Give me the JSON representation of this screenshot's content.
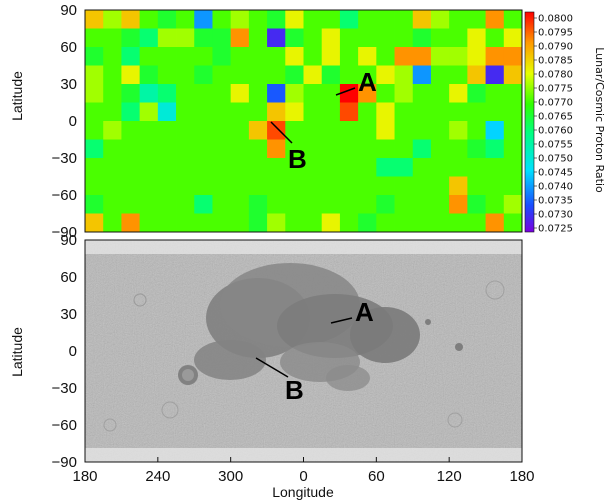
{
  "chart_data": [
    {
      "type": "heatmap",
      "panel": "top",
      "ylabel": "Latitude",
      "yticks": [
        "90",
        "60",
        "30",
        "0",
        "−30",
        "−60",
        "−90"
      ],
      "colorbar": {
        "label": "Lunar/Cosmic Proton Ratio",
        "ticks": [
          "0.0800",
          "0.0795",
          "0.0790",
          "0.0785",
          "0.0780",
          "0.0775",
          "0.0770",
          "0.0765",
          "0.0760",
          "0.0755",
          "0.0750",
          "0.0745",
          "0.0740",
          "0.0735",
          "0.0730",
          "0.0725"
        ],
        "range": [
          0.0725,
          0.08
        ],
        "palette": "rainbow (purple-blue-cyan-green-yellow-orange-red)"
      },
      "grid_rows": 12,
      "grid_cols": 24,
      "values": [
        [
          0.0785,
          0.0775,
          0.0785,
          0.077,
          0.0765,
          0.077,
          0.074,
          0.077,
          0.0775,
          0.077,
          0.0765,
          0.078,
          0.077,
          0.077,
          0.076,
          0.077,
          0.077,
          0.077,
          0.0785,
          0.0775,
          0.077,
          0.077,
          0.079,
          0.077
        ],
        [
          0.077,
          0.077,
          0.0765,
          0.076,
          0.0775,
          0.0775,
          0.0765,
          0.0765,
          0.079,
          0.077,
          0.073,
          0.0765,
          0.077,
          0.078,
          0.077,
          0.077,
          0.077,
          0.077,
          0.0765,
          0.077,
          0.077,
          0.078,
          0.077,
          0.078
        ],
        [
          0.0765,
          0.077,
          0.076,
          0.077,
          0.077,
          0.077,
          0.077,
          0.0765,
          0.077,
          0.077,
          0.077,
          0.078,
          0.077,
          0.078,
          0.077,
          0.078,
          0.077,
          0.079,
          0.079,
          0.0775,
          0.0775,
          0.078,
          0.079,
          0.079
        ],
        [
          0.0775,
          0.077,
          0.078,
          0.0765,
          0.077,
          0.077,
          0.0765,
          0.077,
          0.077,
          0.077,
          0.077,
          0.0765,
          0.078,
          0.0765,
          0.077,
          0.077,
          0.078,
          0.0775,
          0.074,
          0.077,
          0.077,
          0.0785,
          0.073,
          0.0785
        ],
        [
          0.0775,
          0.077,
          0.0765,
          0.0755,
          0.076,
          0.077,
          0.077,
          0.077,
          0.078,
          0.077,
          0.0735,
          0.0775,
          0.077,
          0.077,
          0.08,
          0.079,
          0.077,
          0.0775,
          0.077,
          0.077,
          0.078,
          0.0765,
          0.077,
          0.077
        ],
        [
          0.077,
          0.077,
          0.076,
          0.0775,
          0.075,
          0.077,
          0.077,
          0.077,
          0.077,
          0.077,
          0.0785,
          0.078,
          0.077,
          0.077,
          0.0795,
          0.077,
          0.078,
          0.077,
          0.077,
          0.077,
          0.077,
          0.077,
          0.077,
          0.077
        ],
        [
          0.077,
          0.0775,
          0.077,
          0.077,
          0.077,
          0.077,
          0.077,
          0.077,
          0.077,
          0.0785,
          0.0795,
          0.077,
          0.077,
          0.077,
          0.077,
          0.077,
          0.078,
          0.077,
          0.077,
          0.077,
          0.0775,
          0.077,
          0.0745,
          0.077
        ],
        [
          0.076,
          0.077,
          0.077,
          0.077,
          0.077,
          0.077,
          0.077,
          0.077,
          0.077,
          0.077,
          0.079,
          0.077,
          0.077,
          0.077,
          0.077,
          0.077,
          0.077,
          0.077,
          0.076,
          0.077,
          0.077,
          0.0765,
          0.076,
          0.077
        ],
        [
          0.077,
          0.077,
          0.077,
          0.077,
          0.077,
          0.077,
          0.077,
          0.077,
          0.077,
          0.077,
          0.077,
          0.077,
          0.077,
          0.077,
          0.077,
          0.077,
          0.076,
          0.076,
          0.077,
          0.077,
          0.077,
          0.077,
          0.077,
          0.077
        ],
        [
          0.077,
          0.077,
          0.077,
          0.077,
          0.077,
          0.077,
          0.077,
          0.077,
          0.077,
          0.077,
          0.077,
          0.077,
          0.077,
          0.077,
          0.077,
          0.077,
          0.077,
          0.077,
          0.077,
          0.077,
          0.0785,
          0.077,
          0.077,
          0.077
        ],
        [
          0.0765,
          0.077,
          0.077,
          0.077,
          0.077,
          0.077,
          0.076,
          0.077,
          0.077,
          0.0765,
          0.077,
          0.077,
          0.077,
          0.077,
          0.077,
          0.077,
          0.0765,
          0.077,
          0.077,
          0.077,
          0.079,
          0.0765,
          0.077,
          0.0775
        ],
        [
          0.0785,
          0.077,
          0.079,
          0.077,
          0.077,
          0.077,
          0.077,
          0.077,
          0.077,
          0.0765,
          0.0775,
          0.077,
          0.077,
          0.078,
          0.077,
          0.0765,
          0.077,
          0.077,
          0.077,
          0.077,
          0.077,
          0.077,
          0.079,
          0.077
        ]
      ],
      "annotations": [
        {
          "label": "A",
          "lon": 25,
          "lat": 25
        },
        {
          "label": "B",
          "lon": -25,
          "lat": -15
        }
      ]
    },
    {
      "type": "image-map",
      "panel": "bottom",
      "ylabel": "Latitude",
      "xlabel": "Longitude",
      "yticks": [
        "90",
        "60",
        "30",
        "0",
        "−30",
        "−60",
        "−90"
      ],
      "xticks": [
        "180",
        "240",
        "300",
        "0",
        "60",
        "120",
        "180"
      ],
      "annotations": [
        {
          "label": "A",
          "lon": 25,
          "lat": 25
        },
        {
          "label": "B",
          "lon": -25,
          "lat": -15
        }
      ]
    }
  ]
}
